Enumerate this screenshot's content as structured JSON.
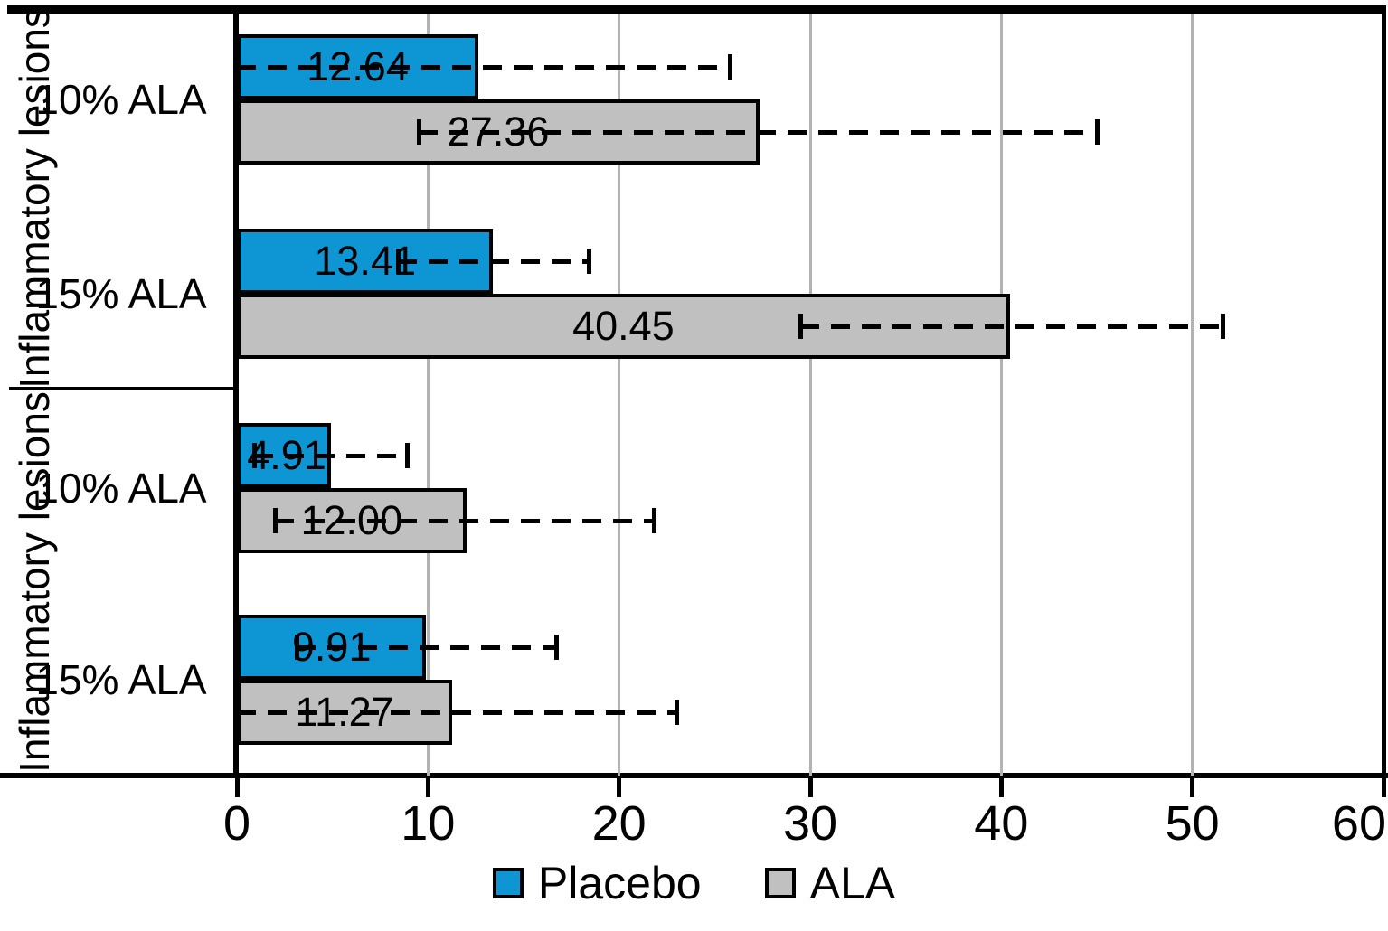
{
  "chart_data": {
    "type": "bar",
    "orientation": "horizontal",
    "title": "",
    "xlabel": "",
    "ylabel": "",
    "xlim": [
      0,
      60
    ],
    "x_ticks": [
      0,
      10,
      20,
      30,
      40,
      50,
      60
    ],
    "grid": true,
    "legend_position": "bottom",
    "series_names": [
      "Placebo",
      "ALA"
    ],
    "groups": [
      {
        "group_label": "Inflammatory lesions",
        "categories": [
          {
            "label": "10% ALA",
            "bars": [
              {
                "series": "Placebo",
                "value": 12.64,
                "display": "12.64",
                "err_low": 0.0,
                "err_high": 25.8
              },
              {
                "series": "ALA",
                "value": 27.36,
                "display": "27.36",
                "err_low": 9.5,
                "err_high": 45.0
              }
            ]
          },
          {
            "label": "15% ALA",
            "bars": [
              {
                "series": "Placebo",
                "value": 13.41,
                "display": "13.41",
                "err_low": 8.4,
                "err_high": 18.4
              },
              {
                "series": "ALA",
                "value": 40.45,
                "display": "40.45",
                "err_low": 29.5,
                "err_high": 51.6
              }
            ]
          }
        ]
      },
      {
        "group_label": "Inflammatory lesions",
        "categories": [
          {
            "label": "10% ALA",
            "bars": [
              {
                "series": "Placebo",
                "value": 4.91,
                "display": "4.91",
                "err_low": 0.9,
                "err_high": 8.9
              },
              {
                "series": "ALA",
                "value": 12.0,
                "display": "12.00",
                "err_low": 2.0,
                "err_high": 21.8
              }
            ]
          },
          {
            "label": "15% ALA",
            "bars": [
              {
                "series": "Placebo",
                "value": 9.91,
                "display": "9.91",
                "err_low": 3.1,
                "err_high": 16.7
              },
              {
                "series": "ALA",
                "value": 11.27,
                "display": "11.27",
                "err_low": 0.0,
                "err_high": 23.0
              }
            ]
          }
        ]
      }
    ],
    "legend": [
      {
        "label": "Placebo",
        "color": "#0d96d3"
      },
      {
        "label": "ALA",
        "color": "#c0c0c0"
      }
    ],
    "colors": {
      "placebo": "#0d96d3",
      "ala": "#c0c0c0",
      "bar_border": "#000000",
      "gridline": "#b3b3b3",
      "axis": "#000000"
    }
  }
}
